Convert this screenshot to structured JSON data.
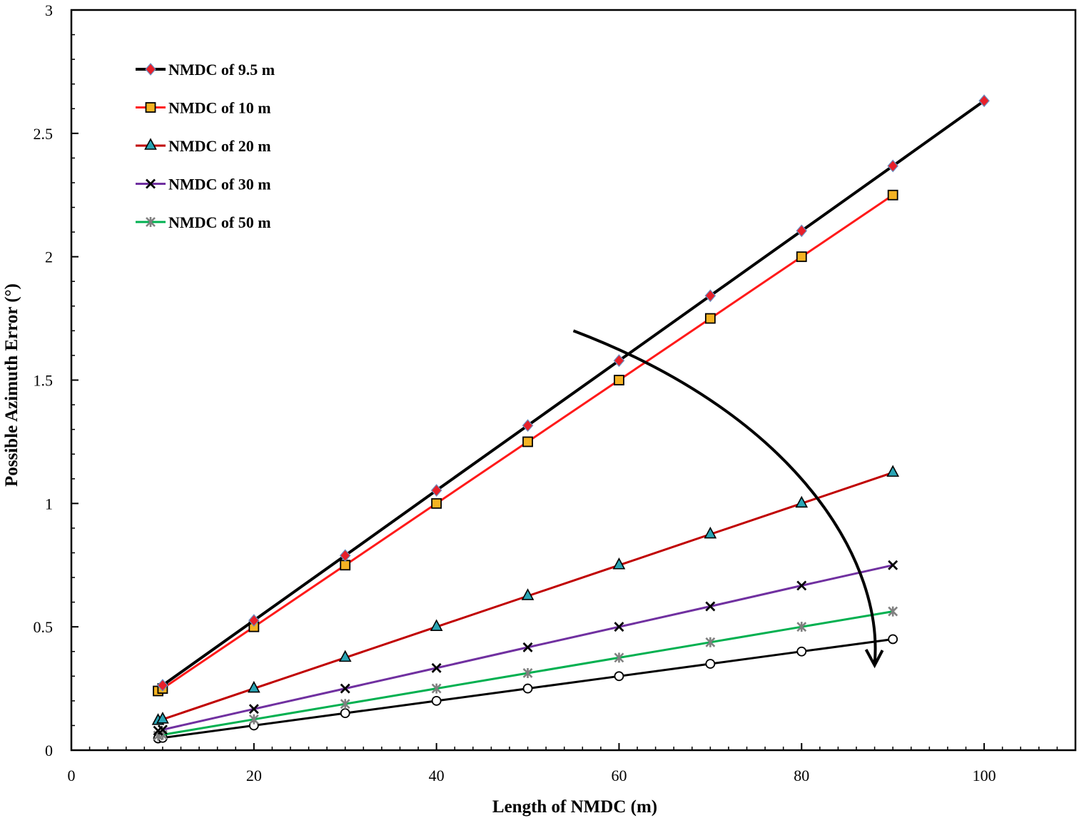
{
  "chart_data": {
    "type": "line",
    "title": "",
    "xlabel": "Length of NMDC (m)",
    "ylabel": "Possible Azimuth Error (°)",
    "xlim": [
      0,
      110
    ],
    "ylim": [
      0,
      3
    ],
    "xticks": [
      0,
      20,
      40,
      60,
      80,
      100
    ],
    "xtick_labels": [
      "0",
      "20",
      "40",
      "60",
      "80",
      "100"
    ],
    "yticks": [
      0,
      0.5,
      1,
      1.5,
      2,
      2.5,
      3
    ],
    "ytick_labels": [
      "0",
      "0.5",
      "1",
      "1.5",
      "2",
      "2.5",
      "3"
    ],
    "grid": false,
    "legend_position": "top-left",
    "series": [
      {
        "name": "NMDC of 9.5 m",
        "color": "#000000",
        "marker": "diamond",
        "marker_fill": "#e8202a",
        "marker_stroke": "#6a8fc0",
        "x": [
          10,
          20,
          30,
          40,
          50,
          60,
          70,
          80,
          90,
          100
        ],
        "values": [
          0.263,
          0.526,
          0.789,
          1.053,
          1.316,
          1.579,
          1.842,
          2.105,
          2.368,
          2.632
        ]
      },
      {
        "name": "NMDC of 10 m",
        "color": "#ff1a1a",
        "marker": "square",
        "marker_fill": "#f5b323",
        "marker_stroke": "#000000",
        "x": [
          9.5,
          10,
          20,
          30,
          40,
          50,
          60,
          70,
          80,
          90
        ],
        "values": [
          0.24,
          0.25,
          0.5,
          0.75,
          1.0,
          1.25,
          1.5,
          1.75,
          2.0,
          2.25
        ]
      },
      {
        "name": "NMDC of 20 m",
        "color": "#c00000",
        "marker": "triangle",
        "marker_fill": "#2aa5b5",
        "marker_stroke": "#000000",
        "x": [
          9.5,
          10,
          20,
          30,
          40,
          50,
          60,
          70,
          80,
          90
        ],
        "values": [
          0.119,
          0.125,
          0.25,
          0.375,
          0.5,
          0.625,
          0.75,
          0.875,
          1.0,
          1.125
        ]
      },
      {
        "name": "NMDC of 30 m",
        "color": "#7030a0",
        "marker": "x",
        "marker_fill": "none",
        "marker_stroke": "#000000",
        "x": [
          9.5,
          10,
          20,
          30,
          40,
          50,
          60,
          70,
          80,
          90
        ],
        "values": [
          0.079,
          0.083,
          0.167,
          0.25,
          0.333,
          0.417,
          0.5,
          0.583,
          0.667,
          0.75
        ]
      },
      {
        "name": "NMDC of 50 m",
        "color": "#00b050",
        "marker": "star",
        "marker_fill": "none",
        "marker_stroke": "#808080",
        "x": [
          9.5,
          10,
          20,
          30,
          40,
          50,
          60,
          70,
          80,
          90
        ],
        "values": [
          0.059,
          0.0625,
          0.125,
          0.1875,
          0.25,
          0.3125,
          0.375,
          0.4375,
          0.5,
          0.5625
        ]
      },
      {
        "name": "",
        "color": "#000000",
        "marker": "circle",
        "marker_fill": "#ffffff",
        "marker_stroke": "#000000",
        "x": [
          9.5,
          10,
          20,
          30,
          40,
          50,
          60,
          70,
          80,
          90
        ],
        "values": [
          0.0475,
          0.05,
          0.1,
          0.15,
          0.2,
          0.25,
          0.3,
          0.35,
          0.4,
          0.45
        ]
      }
    ],
    "annotations": [
      {
        "type": "curved-arrow",
        "from": [
          55,
          1.7
        ],
        "to": [
          88,
          0.35
        ]
      }
    ]
  }
}
